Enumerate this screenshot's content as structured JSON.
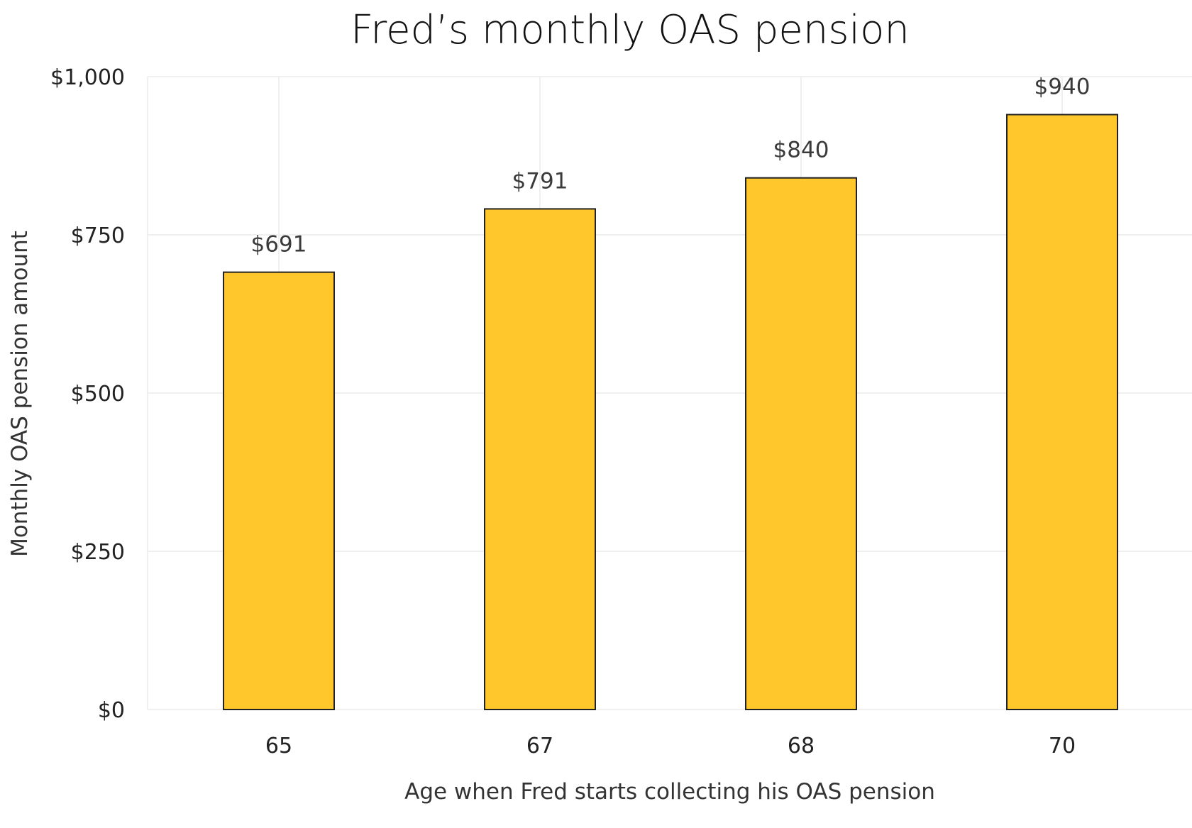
{
  "chart_data": {
    "type": "bar",
    "title": "Fred’s monthly OAS pension",
    "xlabel": "Age when Fred starts collecting his OAS pension",
    "ylabel": "Monthly OAS pension amount",
    "categories": [
      "65",
      "67",
      "68",
      "70"
    ],
    "values": [
      691,
      791,
      840,
      940
    ],
    "data_labels": [
      "$691",
      "$791",
      "$840",
      "$940"
    ],
    "ylim": [
      0,
      1000
    ],
    "yticks": [
      0,
      250,
      500,
      750,
      1000
    ],
    "ytick_labels": [
      "$0",
      "$250",
      "$500",
      "$750",
      "$1,000"
    ],
    "grid": true,
    "legend": "none",
    "colors": {
      "bar_fill": "#FFC72C",
      "bar_edge": "#222222",
      "grid": "#EBEBEB"
    }
  }
}
